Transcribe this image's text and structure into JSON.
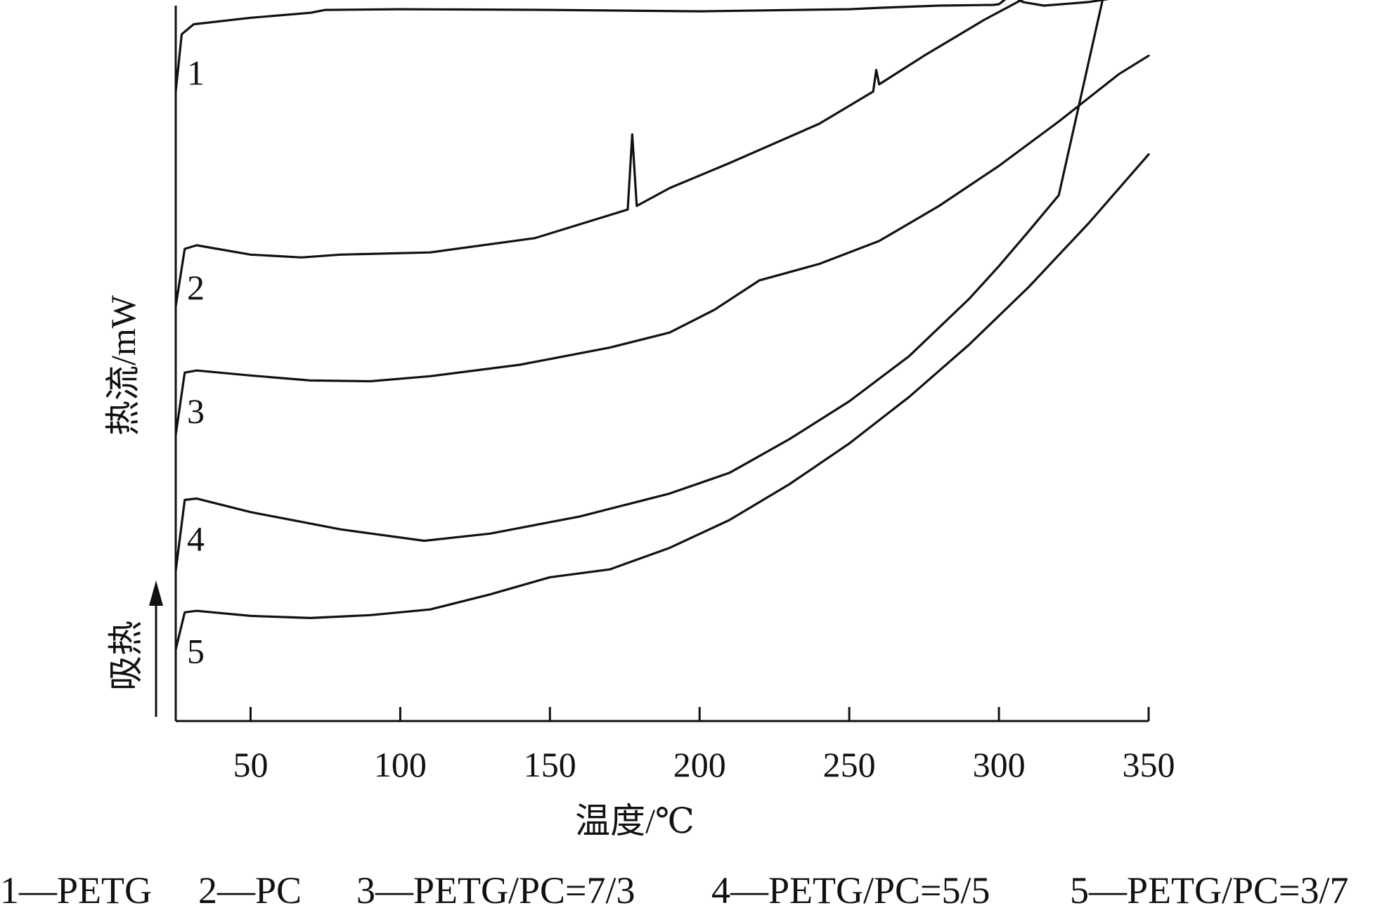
{
  "chart_data": {
    "type": "line",
    "title": "",
    "xlabel": "温度/℃",
    "ylabel": "热流/mW",
    "endo_label": "吸热",
    "xlim": [
      25,
      350
    ],
    "ylim": [
      0,
      100
    ],
    "x_ticks": [
      "50",
      "100",
      "150",
      "200",
      "250",
      "300",
      "350"
    ],
    "grid": false,
    "series": [
      {
        "name": "1",
        "points": [
          [
            25,
            88
          ],
          [
            27,
            96
          ],
          [
            31,
            97.4
          ],
          [
            50,
            98.3
          ],
          [
            70,
            99
          ],
          [
            75,
            99.4
          ],
          [
            100,
            99.5
          ],
          [
            150,
            99.4
          ],
          [
            200,
            99.2
          ],
          [
            250,
            99.5
          ],
          [
            260,
            99.7
          ],
          [
            280,
            100
          ],
          [
            298,
            100.1
          ],
          [
            300,
            100.2
          ],
          [
            304,
            101.5
          ],
          [
            308,
            100.5
          ],
          [
            315,
            100
          ],
          [
            330,
            100.5
          ],
          [
            350,
            101.8
          ]
        ]
      },
      {
        "name": "2",
        "points": [
          [
            25,
            58
          ],
          [
            28,
            66
          ],
          [
            32,
            66.5
          ],
          [
            50,
            65.2
          ],
          [
            67,
            64.8
          ],
          [
            80,
            65.2
          ],
          [
            110,
            65.5
          ],
          [
            145,
            67.5
          ],
          [
            176,
            71.5
          ],
          [
            177.5,
            82
          ],
          [
            179,
            72
          ],
          [
            190,
            74.5
          ],
          [
            210,
            78
          ],
          [
            240,
            83.5
          ],
          [
            258,
            88
          ],
          [
            259,
            91
          ],
          [
            260,
            89
          ],
          [
            275,
            93
          ],
          [
            295,
            98
          ],
          [
            312,
            101.8
          ]
        ]
      },
      {
        "name": "3",
        "points": [
          [
            25,
            40
          ],
          [
            28,
            48.7
          ],
          [
            32,
            49
          ],
          [
            50,
            48.3
          ],
          [
            70,
            47.6
          ],
          [
            90,
            47.5
          ],
          [
            110,
            48.2
          ],
          [
            140,
            49.8
          ],
          [
            170,
            52.2
          ],
          [
            190,
            54.3
          ],
          [
            205,
            57.5
          ],
          [
            220,
            61.6
          ],
          [
            240,
            63.9
          ],
          [
            260,
            67.1
          ],
          [
            280,
            72
          ],
          [
            300,
            77.6
          ],
          [
            320,
            83.8
          ],
          [
            340,
            90.4
          ],
          [
            350,
            93
          ]
        ]
      },
      {
        "name": "4",
        "points": [
          [
            25,
            21
          ],
          [
            28,
            30.9
          ],
          [
            32,
            31.1
          ],
          [
            50,
            29.2
          ],
          [
            80,
            26.8
          ],
          [
            108,
            25.2
          ],
          [
            130,
            26.2
          ],
          [
            160,
            28.6
          ],
          [
            190,
            31.8
          ],
          [
            210,
            34.7
          ],
          [
            230,
            39.4
          ],
          [
            250,
            44.7
          ],
          [
            270,
            51
          ],
          [
            290,
            59
          ],
          [
            300,
            63.6
          ],
          [
            310,
            68.5
          ],
          [
            320,
            73.5
          ],
          [
            335,
            101.5
          ]
        ]
      },
      {
        "name": "5",
        "points": [
          [
            25,
            10
          ],
          [
            28,
            15.2
          ],
          [
            32,
            15.4
          ],
          [
            50,
            14.7
          ],
          [
            70,
            14.4
          ],
          [
            90,
            14.8
          ],
          [
            110,
            15.6
          ],
          [
            130,
            17.7
          ],
          [
            150,
            20.1
          ],
          [
            170,
            21.2
          ],
          [
            190,
            24.2
          ],
          [
            210,
            28.1
          ],
          [
            230,
            33.1
          ],
          [
            250,
            38.8
          ],
          [
            270,
            45.3
          ],
          [
            290,
            52.6
          ],
          [
            310,
            60.7
          ],
          [
            330,
            69.6
          ],
          [
            350,
            79.2
          ]
        ]
      }
    ],
    "legend": [
      {
        "num": "1",
        "text": "1—PETG"
      },
      {
        "num": "2",
        "text": "2—PC"
      },
      {
        "num": "3",
        "text": "3—PETG/PC=7/3"
      },
      {
        "num": "4",
        "text": "4—PETG/PC=5/5"
      },
      {
        "num": "5",
        "text": "5—PETG/PC=3/7"
      }
    ],
    "colors": {
      "line": "#111111",
      "background": "#ffffff"
    }
  }
}
